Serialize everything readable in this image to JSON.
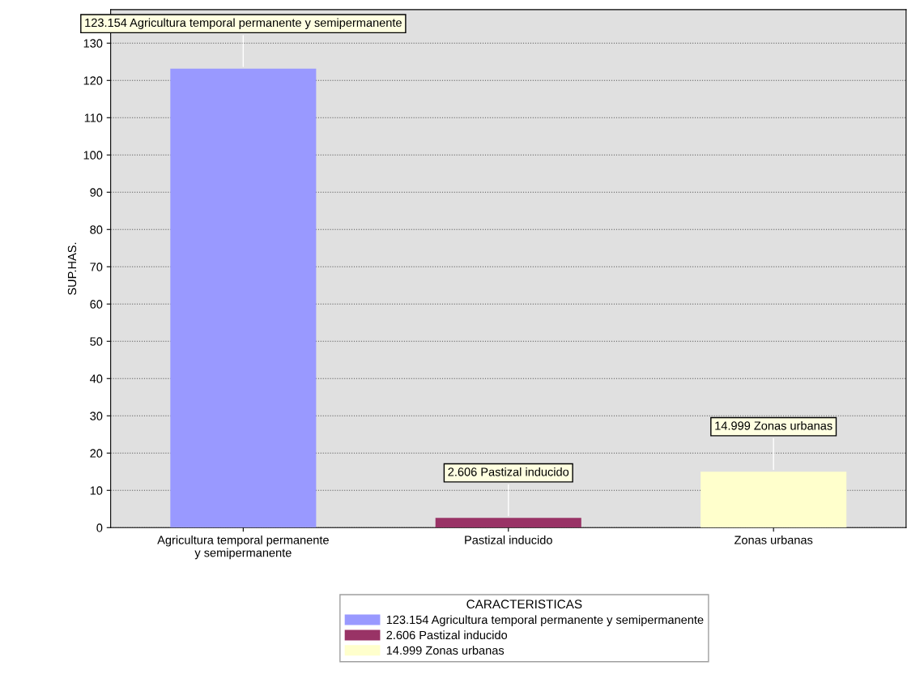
{
  "chart_data": {
    "type": "bar",
    "ylabel": "SUP.HAS.",
    "categories": [
      "Agricultura temporal permanente\ny semipermanente",
      "Pastizal inducido",
      "Zonas urbanas"
    ],
    "series": [
      {
        "name": "123.154 Agricultura temporal permanente y semipermanente",
        "color": "#9999ff",
        "values": [
          123.154,
          null,
          null
        ],
        "value_labels": [
          "123.154 Agricultura temporal permanente y semipermanente",
          null,
          null
        ]
      },
      {
        "name": "2.606 Pastizal inducido",
        "color": "#993366",
        "values": [
          null,
          2.606,
          null
        ],
        "value_labels": [
          null,
          "2.606 Pastizal inducido",
          null
        ]
      },
      {
        "name": "14.999 Zonas urbanas",
        "color": "#ffffcc",
        "values": [
          null,
          null,
          14.999
        ],
        "value_labels": [
          null,
          null,
          "14.999 Zonas urbanas"
        ]
      }
    ],
    "ylim": [
      0,
      139
    ],
    "yticks": [
      0,
      10,
      20,
      30,
      40,
      50,
      60,
      70,
      80,
      90,
      100,
      110,
      120,
      130
    ],
    "grid": "y",
    "legend": "bottom",
    "legend_title": "CARACTERISTICAS"
  }
}
